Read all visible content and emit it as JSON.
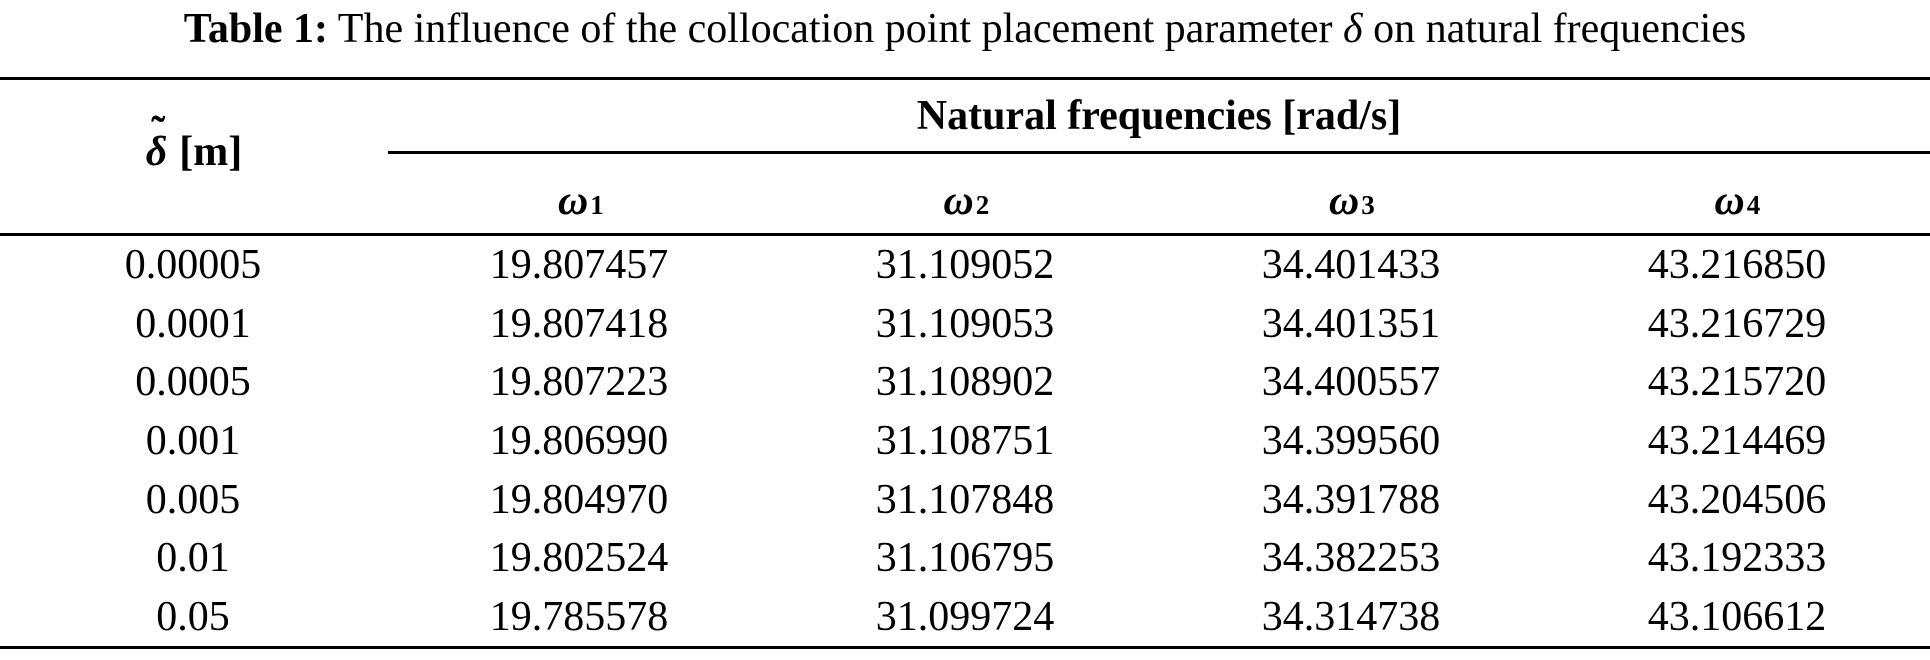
{
  "caption": {
    "label": "Table 1:",
    "text_before_symbol": " The influence of the collocation point placement parameter ",
    "symbol": "δ",
    "symbol_accent": "˜",
    "text_after_symbol": " on natural frequencies"
  },
  "table": {
    "row_header": {
      "symbol": "δ",
      "accent": "˜",
      "unit": "[m]"
    },
    "group_header": "Natural frequencies [rad/s]",
    "column_headers": [
      {
        "symbol": "ω",
        "sub": "1"
      },
      {
        "symbol": "ω",
        "sub": "2"
      },
      {
        "symbol": "ω",
        "sub": "3"
      },
      {
        "symbol": "ω",
        "sub": "4"
      }
    ],
    "rows": [
      [
        "0.00005",
        "19.807457",
        "31.109052",
        "34.401433",
        "43.216850"
      ],
      [
        "0.0001",
        "19.807418",
        "31.109053",
        "34.401351",
        "43.216729"
      ],
      [
        "0.0005",
        "19.807223",
        "31.108902",
        "34.400557",
        "43.215720"
      ],
      [
        "0.001",
        "19.806990",
        "31.108751",
        "34.399560",
        "43.214469"
      ],
      [
        "0.005",
        "19.804970",
        "31.107848",
        "34.391788",
        "43.204506"
      ],
      [
        "0.01",
        "19.802524",
        "31.106795",
        "34.382253",
        "43.192333"
      ],
      [
        "0.05",
        "19.785578",
        "31.099724",
        "34.314738",
        "43.106612"
      ]
    ]
  },
  "colors": {
    "background": "#ffffff",
    "text": "#000000",
    "rule": "#000000"
  }
}
